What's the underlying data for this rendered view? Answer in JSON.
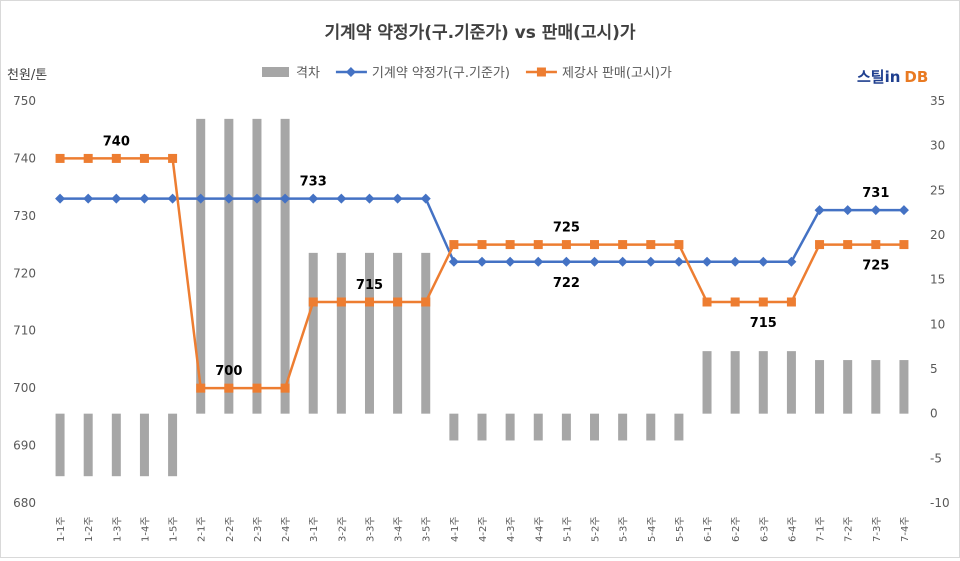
{
  "chart_data": {
    "type": "bar+line",
    "title": "기계약 약정가(구.기준가)  vs 판매(고시)가",
    "y_left_unit": "천원/톤",
    "y_left_lim": [
      680,
      750
    ],
    "y_left_ticks": [
      680,
      690,
      700,
      710,
      720,
      730,
      740,
      750
    ],
    "y_right_lim": [
      -10,
      35
    ],
    "y_right_ticks": [
      -10,
      -5,
      0,
      5,
      10,
      15,
      20,
      25,
      30,
      35
    ],
    "categories": [
      "1-1주",
      "1-2주",
      "1-3주",
      "1-4주",
      "1-5주",
      "2-1주",
      "2-2주",
      "2-3주",
      "2-4주",
      "3-1주",
      "3-2주",
      "3-3주",
      "3-4주",
      "3-5주",
      "4-1주",
      "4-2주",
      "4-3주",
      "4-4주",
      "5-1주",
      "5-2주",
      "5-3주",
      "5-4주",
      "5-5주",
      "6-1주",
      "6-2주",
      "6-3주",
      "6-4주",
      "7-1주",
      "7-2주",
      "7-3주",
      "7-4주"
    ],
    "series": [
      {
        "name": "격차",
        "type": "bar",
        "axis": "right",
        "color": "#a6a6a6",
        "values": [
          -7,
          -7,
          -7,
          -7,
          -7,
          33,
          33,
          33,
          33,
          18,
          18,
          18,
          18,
          18,
          -3,
          -3,
          -3,
          -3,
          -3,
          -3,
          -3,
          -3,
          -3,
          7,
          7,
          7,
          7,
          6,
          6,
          6,
          6
        ]
      },
      {
        "name": "기계약 약정가(구.기준가)",
        "type": "line",
        "axis": "left",
        "color": "#4472c4",
        "marker": "diamond",
        "values": [
          733,
          733,
          733,
          733,
          733,
          733,
          733,
          733,
          733,
          733,
          733,
          733,
          733,
          733,
          722,
          722,
          722,
          722,
          722,
          722,
          722,
          722,
          722,
          722,
          722,
          722,
          722,
          731,
          731,
          731,
          731
        ]
      },
      {
        "name": "제강사 판매(고시)가",
        "type": "line",
        "axis": "left",
        "color": "#ed7d31",
        "marker": "square",
        "values": [
          740,
          740,
          740,
          740,
          740,
          700,
          700,
          700,
          700,
          715,
          715,
          715,
          715,
          715,
          725,
          725,
          725,
          725,
          725,
          725,
          725,
          725,
          725,
          715,
          715,
          715,
          715,
          725,
          725,
          725,
          725
        ]
      }
    ],
    "annotations": [
      {
        "text": "740",
        "series": 2,
        "index": 2,
        "pos": "above"
      },
      {
        "text": "733",
        "series": 1,
        "index": 9,
        "pos": "above"
      },
      {
        "text": "700",
        "series": 2,
        "index": 6,
        "pos": "above"
      },
      {
        "text": "715",
        "series": 2,
        "index": 11,
        "pos": "above"
      },
      {
        "text": "725",
        "series": 2,
        "index": 18,
        "pos": "above"
      },
      {
        "text": "722",
        "series": 1,
        "index": 18,
        "pos": "below"
      },
      {
        "text": "715",
        "series": 2,
        "index": 25,
        "pos": "below"
      },
      {
        "text": "731",
        "series": 1,
        "index": 29,
        "pos": "above"
      },
      {
        "text": "725",
        "series": 2,
        "index": 29,
        "pos": "below"
      }
    ],
    "legend_position": "top",
    "grid": false
  },
  "brand": {
    "part1": "스틸in",
    "part2": "DB"
  }
}
